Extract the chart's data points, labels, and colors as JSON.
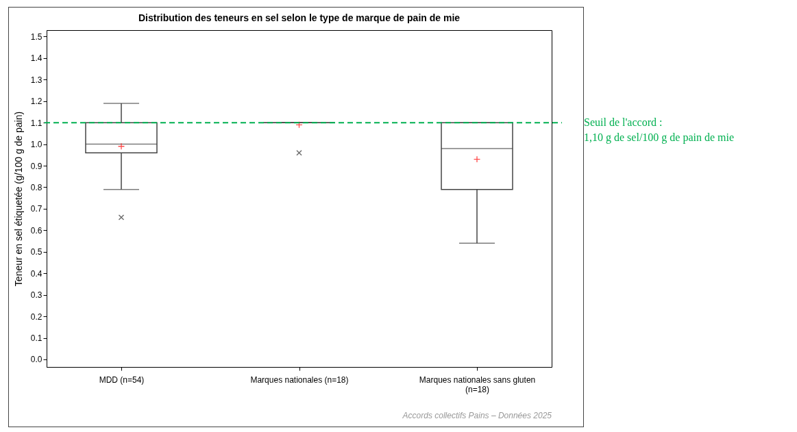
{
  "chart_data": {
    "type": "box",
    "title": "Distribution des teneurs en sel selon le type de marque de pain de mie",
    "ylabel": "Teneur en sel étiquetée (g/100 g de pain)",
    "categories": [
      "MDD (n=54)",
      "Marques nationales (n=18)",
      "Marques nationales sans gluten (n=18)"
    ],
    "boxes": [
      {
        "low": 0.79,
        "q1": 0.96,
        "median": 1.0,
        "q3": 1.1,
        "high": 1.19,
        "mean": 0.99,
        "outliers": [
          0.66
        ]
      },
      {
        "low": 1.1,
        "q1": 1.1,
        "median": 1.1,
        "q3": 1.1,
        "high": 1.1,
        "mean": 1.09,
        "outliers": [
          0.96
        ]
      },
      {
        "low": 0.54,
        "q1": 0.79,
        "median": 0.98,
        "q3": 1.1,
        "high": 1.1,
        "mean": 0.93
      }
    ],
    "ylim": [
      -0.035,
      1.53
    ],
    "yticks": [
      {
        "value": 0,
        "label": "0.0"
      },
      {
        "value": 0.1,
        "label": "0.1"
      },
      {
        "value": 0.2,
        "label": "0.2"
      },
      {
        "value": 0.3,
        "label": "0.3"
      },
      {
        "value": 0.4,
        "label": "0.4"
      },
      {
        "value": 0.5,
        "label": "0.5"
      },
      {
        "value": 0.6,
        "label": "0.6"
      },
      {
        "value": 0.7,
        "label": "0.7"
      },
      {
        "value": 0.8,
        "label": "0.8"
      },
      {
        "value": 0.9,
        "label": "0.9"
      },
      {
        "value": 1.0,
        "label": "1.0"
      },
      {
        "value": 1.1,
        "label": "1.1"
      },
      {
        "value": 1.2,
        "label": "1.2"
      },
      {
        "value": 1.3,
        "label": "1.3"
      },
      {
        "value": 1.4,
        "label": "1.4"
      },
      {
        "value": 1.5,
        "label": "1.5"
      }
    ],
    "ref_lines": [
      {
        "axis": "y",
        "value": 1.1,
        "label": "Seuil de l'accord :\n1,10 g de sel/100 g de pain de mie",
        "color": "#00b050",
        "line_style": "dashed"
      }
    ],
    "annotations": [
      "Accords collectifs Pains – Données 2025"
    ],
    "grid": false
  }
}
